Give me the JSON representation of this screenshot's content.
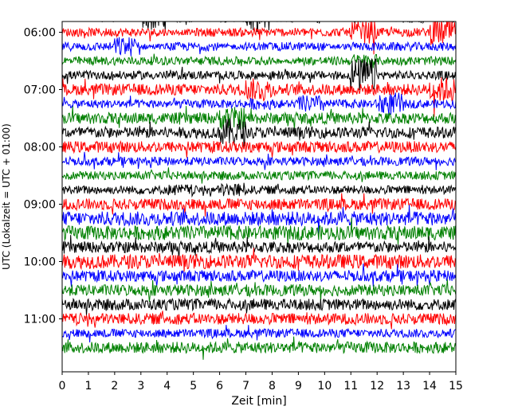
{
  "chart_data": {
    "type": "line",
    "title": "",
    "xlabel": "Zeit  [min]",
    "ylabel": "UTC (Lokalzeit = UTC + 01:00)",
    "xlim": [
      0,
      15
    ],
    "x_ticks": [
      "0",
      "1",
      "2",
      "3",
      "4",
      "5",
      "6",
      "7",
      "8",
      "9",
      "10",
      "11",
      "12",
      "13",
      "14",
      "15"
    ],
    "y_ticks": [
      "06:00",
      "07:00",
      "08:00",
      "09:00",
      "10:00",
      "11:00"
    ],
    "grid": false,
    "legend": "none",
    "trace_interval_min": 15,
    "color_cycle": [
      "#000000",
      "#ff0000",
      "#0000ff",
      "#008000"
    ],
    "series": [
      {
        "start": "05:45",
        "values": [
          0.2,
          0.3,
          0.2,
          0.9,
          0.3,
          0.2,
          0.3,
          1.0,
          0.3,
          0.2,
          0.2,
          0.3,
          0.2,
          0.4,
          0.3,
          0.2
        ]
      },
      {
        "start": "06:00",
        "values": [
          0.3,
          0.3,
          0.3,
          0.3,
          0.2,
          0.3,
          0.3,
          0.3,
          0.3,
          0.3,
          0.3,
          0.8,
          0.3,
          0.3,
          0.9,
          0.3
        ]
      },
      {
        "start": "06:15",
        "values": [
          0.3,
          0.3,
          0.7,
          0.2,
          0.3,
          0.3,
          0.2,
          0.3,
          0.3,
          0.3,
          0.2,
          0.3,
          0.3,
          0.3,
          0.3,
          0.3
        ]
      },
      {
        "start": "06:30",
        "values": [
          0.3,
          0.3,
          0.3,
          0.3,
          0.3,
          0.3,
          0.3,
          0.3,
          0.2,
          0.3,
          0.3,
          0.5,
          0.3,
          0.3,
          0.3,
          0.3
        ]
      },
      {
        "start": "06:45",
        "values": [
          0.3,
          0.3,
          0.3,
          0.3,
          0.3,
          0.3,
          0.3,
          0.3,
          0.3,
          0.3,
          0.3,
          1.2,
          0.3,
          0.3,
          0.3,
          0.3
        ]
      },
      {
        "start": "07:00",
        "values": [
          0.4,
          0.4,
          0.4,
          0.4,
          0.4,
          0.4,
          0.4,
          0.8,
          0.4,
          0.4,
          0.4,
          0.4,
          0.4,
          0.4,
          0.9,
          0.4
        ]
      },
      {
        "start": "07:15",
        "values": [
          0.3,
          0.3,
          0.3,
          0.3,
          0.3,
          0.3,
          0.3,
          0.4,
          0.3,
          0.6,
          0.3,
          0.3,
          0.8,
          0.3,
          0.3,
          0.3
        ]
      },
      {
        "start": "07:30",
        "values": [
          0.4,
          0.4,
          0.4,
          0.4,
          0.4,
          0.4,
          0.8,
          0.4,
          0.4,
          0.4,
          0.4,
          0.4,
          0.4,
          0.4,
          0.4,
          0.4
        ]
      },
      {
        "start": "07:45",
        "values": [
          0.4,
          0.4,
          0.4,
          0.4,
          0.4,
          0.4,
          1.0,
          0.4,
          0.4,
          0.4,
          0.4,
          0.4,
          0.4,
          0.4,
          0.4,
          0.4
        ]
      },
      {
        "start": "08:00",
        "values": [
          0.4,
          0.4,
          0.4,
          0.4,
          0.4,
          0.4,
          0.4,
          0.4,
          0.4,
          0.4,
          0.4,
          0.4,
          0.4,
          0.4,
          0.4,
          0.4
        ]
      },
      {
        "start": "08:15",
        "values": [
          0.3,
          0.3,
          0.3,
          0.3,
          0.3,
          0.3,
          0.3,
          0.3,
          0.3,
          0.3,
          0.3,
          0.3,
          0.3,
          0.3,
          0.3,
          0.3
        ]
      },
      {
        "start": "08:30",
        "values": [
          0.3,
          0.3,
          0.3,
          0.3,
          0.3,
          0.3,
          0.3,
          0.3,
          0.3,
          0.3,
          0.3,
          0.3,
          0.3,
          0.3,
          0.3,
          0.3
        ]
      },
      {
        "start": "08:45",
        "values": [
          0.3,
          0.3,
          0.3,
          0.3,
          0.4,
          0.3,
          0.5,
          0.3,
          0.3,
          0.3,
          0.3,
          0.3,
          0.3,
          0.3,
          0.3,
          0.3
        ]
      },
      {
        "start": "09:00",
        "values": [
          0.4,
          0.4,
          0.4,
          0.4,
          0.4,
          0.4,
          0.4,
          0.4,
          0.4,
          0.4,
          0.4,
          0.4,
          0.4,
          0.4,
          0.4,
          0.4
        ]
      },
      {
        "start": "09:15",
        "values": [
          0.5,
          0.5,
          0.5,
          0.5,
          0.5,
          0.5,
          0.5,
          0.5,
          0.5,
          0.5,
          0.5,
          0.5,
          0.5,
          0.5,
          0.5,
          0.5
        ]
      },
      {
        "start": "09:30",
        "values": [
          0.5,
          0.5,
          0.5,
          0.5,
          0.5,
          0.5,
          0.5,
          0.5,
          0.5,
          0.5,
          0.5,
          0.5,
          0.5,
          0.5,
          0.5,
          0.5
        ]
      },
      {
        "start": "09:45",
        "values": [
          0.4,
          0.4,
          0.4,
          0.4,
          0.4,
          0.4,
          0.4,
          0.4,
          0.4,
          0.4,
          0.4,
          0.4,
          0.4,
          0.4,
          0.4,
          0.4
        ]
      },
      {
        "start": "10:00",
        "values": [
          0.5,
          0.5,
          0.5,
          0.5,
          0.5,
          0.5,
          0.5,
          0.5,
          0.5,
          0.5,
          0.5,
          0.5,
          0.5,
          0.5,
          0.5,
          0.5
        ]
      },
      {
        "start": "10:15",
        "values": [
          0.4,
          0.4,
          0.4,
          0.4,
          0.4,
          0.4,
          0.4,
          0.4,
          0.4,
          0.4,
          0.4,
          0.4,
          0.4,
          0.4,
          0.4,
          0.4
        ]
      },
      {
        "start": "10:30",
        "values": [
          0.4,
          0.4,
          0.4,
          0.4,
          0.4,
          0.4,
          0.4,
          0.4,
          0.4,
          0.4,
          0.4,
          0.4,
          0.4,
          0.4,
          0.4,
          0.4
        ]
      },
      {
        "start": "10:45",
        "values": [
          0.4,
          0.4,
          0.4,
          0.4,
          0.4,
          0.4,
          0.4,
          0.4,
          0.4,
          0.4,
          0.4,
          0.4,
          0.4,
          0.4,
          0.4,
          0.4
        ]
      },
      {
        "start": "11:00",
        "values": [
          0.4,
          0.4,
          0.4,
          0.4,
          0.4,
          0.4,
          0.4,
          0.4,
          0.4,
          0.4,
          0.4,
          0.4,
          0.4,
          0.4,
          0.4,
          0.4
        ]
      },
      {
        "start": "11:15",
        "values": [
          0.3,
          0.3,
          0.3,
          0.3,
          0.3,
          0.3,
          0.3,
          0.3,
          0.3,
          0.3,
          0.3,
          0.3,
          0.3,
          0.3,
          0.3,
          0.3
        ]
      },
      {
        "start": "11:30",
        "values": [
          0.4,
          0.4,
          0.4,
          0.4,
          0.4,
          0.4,
          0.4,
          0.4,
          0.4,
          0.4,
          0.4,
          0.4,
          0.4,
          0.4,
          0.4,
          0.4
        ]
      }
    ]
  }
}
